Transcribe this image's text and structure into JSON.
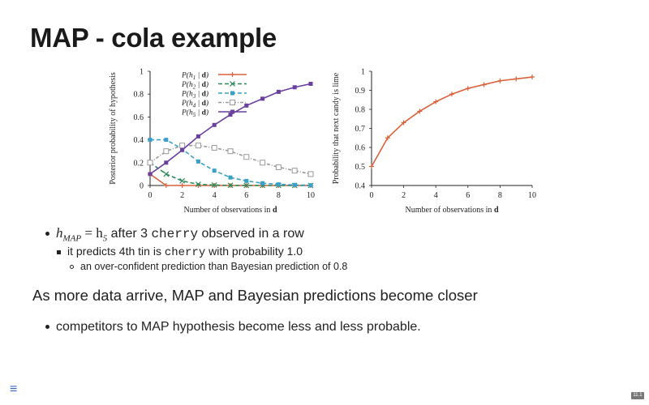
{
  "slide": {
    "title": "MAP - cola example",
    "slide_number": "11.1"
  },
  "bullets": {
    "b1_math_h": "h",
    "b1_math_sub": "MAP",
    "b1_math_eq": " = h",
    "b1_math_sub2": "5",
    "b1_text_a": " after 3 ",
    "b1_code": "cherry",
    "b1_text_b": " observed in a row",
    "b2_text_a": "it predicts 4th tin is ",
    "b2_code": "cherry",
    "b2_text_b": " with probability 1.0",
    "b3_text": "an over-confident prediction than Bayesian prediction of 0.8",
    "section2": "As more data arrive, MAP and Bayesian predictions become closer",
    "b4_text": "competitors to MAP hypothesis become less and less probable."
  },
  "chart_data": [
    {
      "type": "line",
      "xlabel": "Number of observations in d",
      "ylabel": "Posterior probability of hypothesis",
      "xlim": [
        0,
        10
      ],
      "ylim": [
        0,
        1
      ],
      "x_ticks": [
        "0",
        "2",
        "4",
        "6",
        "8",
        "10"
      ],
      "y_ticks": [
        "0",
        "0.2",
        "0.4",
        "0.6",
        "0.8",
        "1"
      ],
      "legend_position": "top-left",
      "x": [
        0,
        1,
        2,
        3,
        4,
        5,
        6,
        7,
        8,
        9,
        10
      ],
      "series": [
        {
          "name": "P(h1 | d)",
          "color": "#d9623b",
          "marker": "plus",
          "values": [
            0.1,
            0,
            0,
            0,
            0,
            0,
            0,
            0,
            0,
            0,
            0
          ]
        },
        {
          "name": "P(h2 | d)",
          "color": "#2b8a5a",
          "marker": "x",
          "values": [
            0.2,
            0.1,
            0.04,
            0.01,
            0.004,
            0.001,
            0,
            0,
            0,
            0,
            0
          ]
        },
        {
          "name": "P(h3 | d)",
          "color": "#3aa0c8",
          "marker": "square",
          "values": [
            0.4,
            0.4,
            0.32,
            0.21,
            0.13,
            0.07,
            0.04,
            0.02,
            0.01,
            0.005,
            0.002
          ]
        },
        {
          "name": "P(h4 | d)",
          "color": "#9a9a9a",
          "marker": "open-square",
          "values": [
            0.2,
            0.3,
            0.35,
            0.35,
            0.33,
            0.3,
            0.25,
            0.2,
            0.16,
            0.13,
            0.1
          ]
        },
        {
          "name": "P(h5 | d)",
          "color": "#6a3fa0",
          "marker": "square",
          "values": [
            0.1,
            0.2,
            0.31,
            0.43,
            0.53,
            0.62,
            0.7,
            0.76,
            0.82,
            0.86,
            0.89
          ]
        }
      ]
    },
    {
      "type": "line",
      "xlabel": "Number of observations in d",
      "ylabel": "Probability that next candy is lime",
      "xlim": [
        0,
        10
      ],
      "ylim": [
        0.4,
        1
      ],
      "x_ticks": [
        "0",
        "2",
        "4",
        "6",
        "8",
        "10"
      ],
      "y_ticks": [
        "0.4",
        "0.5",
        "0.6",
        "0.7",
        "0.8",
        "0.9",
        "1"
      ],
      "x": [
        0,
        1,
        2,
        3,
        4,
        5,
        6,
        7,
        8,
        9,
        10
      ],
      "series": [
        {
          "color": "#d9623b",
          "marker": "plus",
          "values": [
            0.5,
            0.65,
            0.73,
            0.79,
            0.84,
            0.88,
            0.91,
            0.93,
            0.95,
            0.96,
            0.97
          ]
        }
      ]
    }
  ]
}
